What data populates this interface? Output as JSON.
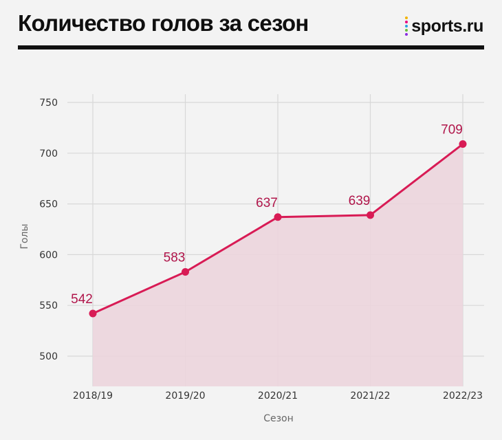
{
  "header": {
    "title": "Количество голов за сезон",
    "logo_text": "sports.ru",
    "logo_dot_colors": [
      "#f2b200",
      "#e6007e",
      "#2aa2e0",
      "#6cbf3c",
      "#8a2be2"
    ]
  },
  "colors": {
    "accent": "#d81b55",
    "area": "#ecd5dd",
    "grid": "#d8d8d8",
    "background": "#f3f3f3"
  },
  "chart_data": {
    "type": "line",
    "title": "Количество голов за сезон",
    "xlabel": "Сезон",
    "ylabel": "Голы",
    "categories": [
      "2018/19",
      "2019/20",
      "2020/21",
      "2021/22",
      "2022/23"
    ],
    "values": [
      542,
      583,
      637,
      639,
      709
    ],
    "data_labels": [
      "542",
      "583",
      "637",
      "639",
      "709"
    ],
    "yticks": [
      500,
      550,
      600,
      650,
      700,
      750
    ],
    "ytick_labels": [
      "500",
      "550",
      "600",
      "650",
      "700",
      "750"
    ],
    "ylim": [
      500,
      750
    ],
    "area_fill": true,
    "grid": true,
    "legend": "none"
  }
}
